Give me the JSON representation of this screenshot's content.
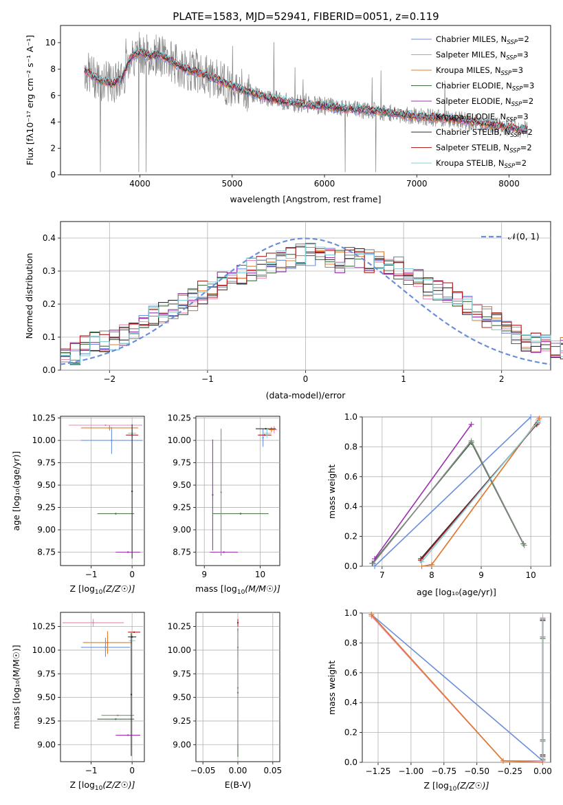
{
  "title": "PLATE=1583, MJD=52941, FIBERID=0051, z=0.119",
  "colors": [
    "#6a8fd8",
    "#e885b5",
    "#e07b2a",
    "#3d6b3d",
    "#9b2fae",
    "#8a8a8a",
    "#2b2b2b",
    "#b01f1f",
    "#7fd1d6"
  ],
  "chart_data": [
    {
      "id": "spectrum",
      "type": "line",
      "title": "PLATE=1583, MJD=52941, FIBERID=0051, z=0.119",
      "xlabel": "wavelength [Angstrom, rest frame]",
      "ylabel": "Flux [f_λ 10^-17 erg cm^-2 s^-1 A^-1]",
      "xlim": [
        3140,
        8450
      ],
      "ylim": [
        0,
        11.3
      ],
      "xticks": [
        "4000",
        "5000",
        "6000",
        "7000",
        "8000"
      ],
      "yticks": [
        "0",
        "2",
        "4",
        "6",
        "8",
        "10"
      ],
      "grid": false,
      "legend_position": "top-right",
      "data_color": "#808080",
      "model_envelope": {
        "x": [
          3400,
          3500,
          3600,
          3700,
          3800,
          3900,
          4000,
          4100,
          4200,
          4300,
          4400,
          4500,
          4600,
          4800,
          5000,
          5200,
          5400,
          5600,
          5800,
          6000,
          6200,
          6400,
          6600,
          6800,
          7000,
          7200,
          7400,
          7600,
          7800,
          8000,
          8200
        ],
        "y": [
          7.9,
          7.4,
          7.1,
          6.9,
          7.2,
          8.9,
          9.3,
          9.0,
          9.1,
          8.8,
          8.3,
          8.0,
          7.8,
          7.3,
          6.7,
          6.2,
          5.8,
          5.5,
          5.3,
          5.2,
          5.0,
          4.9,
          4.8,
          4.6,
          4.4,
          4.3,
          4.2,
          4.0,
          3.8,
          3.6,
          3.4
        ]
      },
      "series": [
        {
          "name": "Chabrier MILES, N_SSP=2",
          "label_main": "Chabrier MILES, N",
          "label_sub": "SSP",
          "label_tail": "=2"
        },
        {
          "name": "Salpeter MILES, N_SSP=3",
          "label_main": "Salpeter MILES, N",
          "label_sub": "SSP",
          "label_tail": "=3"
        },
        {
          "name": "Kroupa MILES, N_SSP=3",
          "label_main": "Kroupa MILES, N",
          "label_sub": "SSP",
          "label_tail": "=3"
        },
        {
          "name": "Chabrier ELODIE, N_SSP=3",
          "label_main": "Chabrier ELODIE, N",
          "label_sub": "SSP",
          "label_tail": "=3"
        },
        {
          "name": "Salpeter ELODIE, N_SSP=2",
          "label_main": "Salpeter ELODIE, N",
          "label_sub": "SSP",
          "label_tail": "=2"
        },
        {
          "name": "Kroupa ELODIE, N_SSP=3",
          "label_main": "Kroupa ELODIE, N",
          "label_sub": "SSP",
          "label_tail": "=3"
        },
        {
          "name": "Chabrier STELIB, N_SSP=2",
          "label_main": "Chabrier STELIB, N",
          "label_sub": "SSP",
          "label_tail": "=2"
        },
        {
          "name": "Salpeter STELIB, N_SSP=2",
          "label_main": "Salpeter STELIB, N",
          "label_sub": "SSP",
          "label_tail": "=2"
        },
        {
          "name": "Kroupa STELIB, N_SSP=2",
          "label_main": "Kroupa STELIB, N",
          "label_sub": "SSP",
          "label_tail": "=2"
        }
      ]
    },
    {
      "id": "residuals",
      "type": "line",
      "xlabel": "(data-model)/error",
      "ylabel": "Normed distribution",
      "xlim": [
        -2.5,
        2.5
      ],
      "ylim": [
        0,
        0.45
      ],
      "xticks": [
        "−2",
        "−1",
        "0",
        "1",
        "2"
      ],
      "yticks": [
        "0.0",
        "0.1",
        "0.2",
        "0.3",
        "0.4"
      ],
      "grid": true,
      "legend_position": "top-right",
      "reference_curve": {
        "name": "𝒩(0, 1)",
        "mean": 0,
        "sigma": 1,
        "style": "dashed"
      },
      "histogram": {
        "bin_width": 0.1,
        "x_start": -2.5,
        "mean_values": [
          0.045,
          0.05,
          0.07,
          0.085,
          0.09,
          0.095,
          0.11,
          0.12,
          0.14,
          0.16,
          0.175,
          0.19,
          0.2,
          0.215,
          0.235,
          0.25,
          0.265,
          0.28,
          0.29,
          0.305,
          0.31,
          0.32,
          0.33,
          0.34,
          0.35,
          0.35,
          0.34,
          0.335,
          0.33,
          0.34,
          0.34,
          0.33,
          0.33,
          0.32,
          0.31,
          0.29,
          0.27,
          0.25,
          0.24,
          0.23,
          0.21,
          0.19,
          0.18,
          0.16,
          0.14,
          0.12,
          0.11,
          0.09,
          0.08,
          0.075,
          0.07,
          0.065,
          0.06,
          0.055,
          0.05,
          0.045,
          0.04,
          0.035,
          0.03,
          0.025
        ]
      }
    },
    {
      "id": "age-vs-z",
      "type": "scatter",
      "xlabel": "Z [log10(Z/Z☉)]",
      "ylabel": "age  [log10(age/yr)]",
      "xlim": [
        -1.75,
        0.3
      ],
      "ylim": [
        8.6,
        10.27
      ],
      "xticks": [
        "−1",
        "0"
      ],
      "yticks": [
        "8.75",
        "9.00",
        "9.25",
        "9.50",
        "9.75",
        "10.00",
        "10.25"
      ],
      "grid": true,
      "points": [
        {
          "series": 0,
          "x": -0.5,
          "y": 10.0,
          "xerr": 0.75,
          "yerr": 0.15
        },
        {
          "series": 1,
          "x": -0.65,
          "y": 10.17,
          "xerr": 0.9,
          "yerr": 0.0
        },
        {
          "series": 2,
          "x": -0.55,
          "y": 10.14,
          "xerr": 0.7,
          "yerr": 0.03
        },
        {
          "series": 3,
          "x": -0.4,
          "y": 9.18,
          "xerr": 0.45,
          "yerr": 0.0
        },
        {
          "series": 4,
          "x": -0.1,
          "y": 8.75,
          "xerr": 0.3,
          "yerr": 0.0
        },
        {
          "series": 7,
          "x": 0.0,
          "y": 10.06,
          "xerr": 0.15,
          "yerr": 0.0
        },
        {
          "series": 8,
          "x": 0.0,
          "y": 10.08,
          "xerr": 0.1,
          "yerr": 0.05
        },
        {
          "series": 6,
          "x": 0.0,
          "y": 9.43,
          "xerr": 0.0,
          "yerr": 0.75
        }
      ]
    },
    {
      "id": "age-vs-mass",
      "type": "scatter",
      "xlabel": "mass [log10(M/M☉)]",
      "ylabel": "",
      "xlim": [
        8.85,
        10.35
      ],
      "ylim": [
        8.6,
        10.27
      ],
      "xticks": [
        "9",
        "10"
      ],
      "yticks": [
        "8.75",
        "9.00",
        "9.25",
        "9.50",
        "9.75",
        "10.00",
        "10.25"
      ],
      "grid": true,
      "points": [
        {
          "series": 0,
          "x": 10.05,
          "y": 10.03,
          "xerr": 0.0,
          "yerr": 0.1
        },
        {
          "series": 1,
          "x": 10.25,
          "y": 10.12,
          "xerr": 0.05,
          "yerr": 0.04
        },
        {
          "series": 2,
          "x": 10.2,
          "y": 10.12,
          "xerr": 0.05,
          "yerr": 0.03
        },
        {
          "series": 6,
          "x": 10.1,
          "y": 10.13,
          "xerr": 0.18,
          "yerr": 0.0
        },
        {
          "series": 7,
          "x": 10.08,
          "y": 10.06,
          "xerr": 0.12,
          "yerr": 0.0
        },
        {
          "series": 8,
          "x": 10.12,
          "y": 10.08,
          "xerr": 0.08,
          "yerr": 0.05
        },
        {
          "series": 3,
          "x": 9.65,
          "y": 9.18,
          "xerr": 0.5,
          "yerr": 0.0
        },
        {
          "series": 4,
          "x": 9.35,
          "y": 8.75,
          "xerr": 0.25,
          "yerr": 0.0
        },
        {
          "series": 4,
          "x": 9.15,
          "y": 9.39,
          "xerr": 0.0,
          "yerr": 0.62
        },
        {
          "series": 5,
          "x": 9.3,
          "y": 9.42,
          "xerr": 0.0,
          "yerr": 0.71
        }
      ]
    },
    {
      "id": "massweight-vs-age",
      "type": "line",
      "xlabel": "age  [log10(age/yr)]",
      "ylabel": "mass weight",
      "xlim": [
        6.6,
        10.4
      ],
      "ylim": [
        0,
        1
      ],
      "xticks": [
        "7",
        "8",
        "9",
        "10"
      ],
      "yticks": [
        "0.0",
        "0.2",
        "0.4",
        "0.6",
        "0.8",
        "1.0"
      ],
      "grid": true,
      "series_points": [
        {
          "series": 0,
          "x": [
            6.85,
            10.0
          ],
          "y": [
            0.0,
            1.0
          ]
        },
        {
          "series": 1,
          "x": [
            7.8,
            8.0,
            10.15
          ],
          "y": [
            0.0,
            0.01,
            0.98
          ]
        },
        {
          "series": 2,
          "x": [
            7.8,
            8.0,
            10.17
          ],
          "y": [
            0.0,
            0.01,
            0.99
          ]
        },
        {
          "series": 3,
          "x": [
            6.8,
            8.8,
            9.85
          ],
          "y": [
            0.02,
            0.83,
            0.15
          ]
        },
        {
          "series": 4,
          "x": [
            6.85,
            8.8
          ],
          "y": [
            0.05,
            0.95
          ]
        },
        {
          "series": 5,
          "x": [
            6.82,
            8.8,
            9.87
          ],
          "y": [
            0.02,
            0.84,
            0.14
          ]
        },
        {
          "series": 6,
          "x": [
            7.78,
            10.12
          ],
          "y": [
            0.05,
            0.95
          ]
        },
        {
          "series": 7,
          "x": [
            7.78,
            10.14
          ],
          "y": [
            0.04,
            0.96
          ]
        },
        {
          "series": 8,
          "x": [
            7.8,
            10.15
          ],
          "y": [
            0.03,
            0.97
          ]
        }
      ]
    },
    {
      "id": "mass-vs-z",
      "type": "scatter",
      "xlabel": "Z [log10(Z/Z☉)]",
      "ylabel": "mass [log10(M/M☉)]",
      "xlim": [
        -1.75,
        0.3
      ],
      "ylim": [
        8.82,
        10.4
      ],
      "xticks": [
        "−1",
        "0"
      ],
      "yticks": [
        "9.00",
        "9.25",
        "9.50",
        "9.75",
        "10.00",
        "10.25"
      ],
      "grid": true,
      "points": [
        {
          "series": 0,
          "x": -0.65,
          "y": 10.03,
          "xerr": 0.6,
          "yerr": 0.1
        },
        {
          "series": 1,
          "x": -0.95,
          "y": 10.29,
          "xerr": 0.75,
          "yerr": 0.04
        },
        {
          "series": 2,
          "x": -0.6,
          "y": 10.08,
          "xerr": 0.6,
          "yerr": 0.12
        },
        {
          "series": 3,
          "x": -0.4,
          "y": 9.27,
          "xerr": 0.45,
          "yerr": 0.0
        },
        {
          "series": 5,
          "x": -0.35,
          "y": 9.31,
          "xerr": 0.4,
          "yerr": 0.0
        },
        {
          "series": 4,
          "x": -0.1,
          "y": 9.1,
          "xerr": 0.3,
          "yerr": 0.0
        },
        {
          "series": 7,
          "x": 0.05,
          "y": 10.19,
          "xerr": 0.15,
          "yerr": 0.0
        },
        {
          "series": 6,
          "x": 0.0,
          "y": 10.14,
          "xerr": 0.1,
          "yerr": 0.0
        },
        {
          "series": 8,
          "x": 0.0,
          "y": 10.1,
          "xerr": 0.08,
          "yerr": 0.0
        },
        {
          "series": 6,
          "x": -0.02,
          "y": 9.53,
          "xerr": 0.0,
          "yerr": 0.65
        }
      ]
    },
    {
      "id": "ebv",
      "type": "scatter",
      "xlabel": "E(B-V)",
      "ylabel": "",
      "xlim": [
        -0.06,
        0.06
      ],
      "ylim": [
        8.82,
        10.4
      ],
      "xticks": [
        "−0.05",
        "0.00",
        "0.05"
      ],
      "yticks": [
        "9.00",
        "9.25",
        "9.50",
        "9.75",
        "10.00",
        "10.25"
      ],
      "grid": true,
      "points": [
        {
          "series": 7,
          "x": 0.0,
          "y": 10.29,
          "xerr": 0.0,
          "yerr": 0.04
        },
        {
          "series": 0,
          "x": 0.0,
          "y": 10.03,
          "xerr": 0.0,
          "yerr": 0.1
        },
        {
          "series": 3,
          "x": 0.0,
          "y": 9.55,
          "xerr": 0.0,
          "yerr": 0.68
        },
        {
          "series": 5,
          "x": 0.0,
          "y": 9.6,
          "xerr": 0.0,
          "yerr": 0.6
        }
      ]
    },
    {
      "id": "massweight-vs-z",
      "type": "line",
      "xlabel": "Z [log10(Z/Z☉)]",
      "ylabel": "mass weight",
      "xlim": [
        -1.37,
        0.06
      ],
      "ylim": [
        0,
        1
      ],
      "xticks": [
        "−1.25",
        "−1.00",
        "−0.75",
        "−0.50",
        "−0.25",
        "0.00"
      ],
      "yticks": [
        "0.0",
        "0.2",
        "0.4",
        "0.6",
        "0.8",
        "1.0"
      ],
      "grid": true,
      "series_points": [
        {
          "series": 0,
          "x": [
            -1.3,
            0.0
          ],
          "y": [
            0.99,
            0.01
          ]
        },
        {
          "series": 1,
          "x": [
            -1.3,
            -0.3,
            0.0
          ],
          "y": [
            0.98,
            0.01,
            0.01
          ]
        },
        {
          "series": 2,
          "x": [
            -1.3,
            -0.3,
            0.0
          ],
          "y": [
            0.99,
            0.01,
            0.0
          ]
        },
        {
          "series": 3,
          "x": [
            0.0,
            0.0,
            0.0
          ],
          "y": [
            0.02,
            0.83,
            0.15
          ]
        },
        {
          "series": 4,
          "x": [
            0.0,
            0.0
          ],
          "y": [
            0.05,
            0.95
          ]
        },
        {
          "series": 5,
          "x": [
            0.0,
            0.0,
            0.0
          ],
          "y": [
            0.02,
            0.84,
            0.14
          ]
        },
        {
          "series": 6,
          "x": [
            0.0,
            0.0
          ],
          "y": [
            0.05,
            0.95
          ]
        },
        {
          "series": 7,
          "x": [
            0.0,
            0.0
          ],
          "y": [
            0.04,
            0.96
          ]
        },
        {
          "series": 8,
          "x": [
            0.0,
            0.0
          ],
          "y": [
            0.03,
            0.97
          ]
        }
      ]
    }
  ]
}
